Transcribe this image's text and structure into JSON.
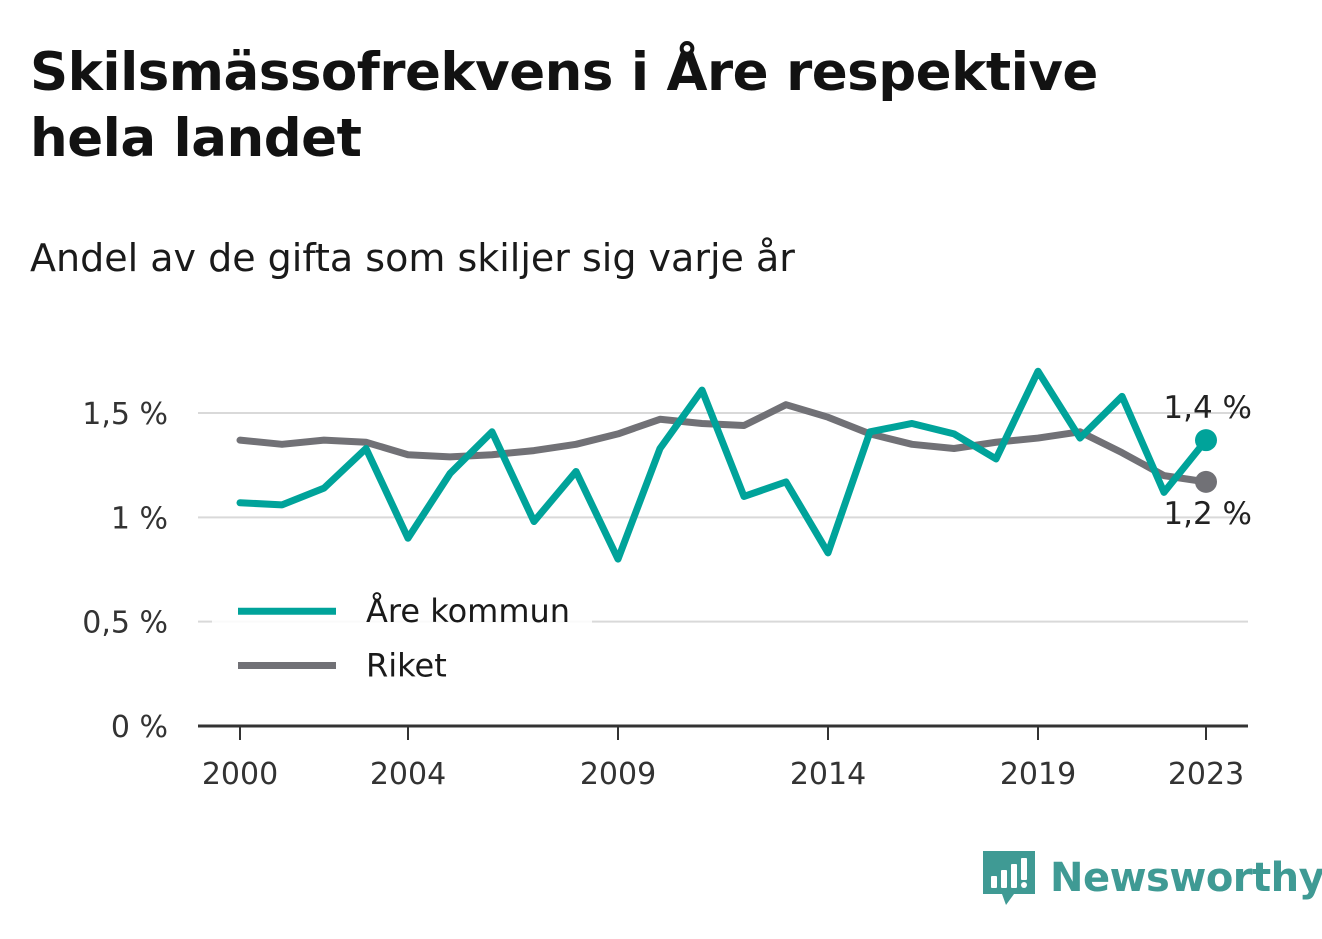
{
  "title": "Skilsmässofrekvens i Åre respektive hela landet",
  "subtitle": "Andel av de gifta som skiljer sig varje år",
  "brand": {
    "name": "Newsworthy",
    "icon": "newsworthy-logo-icon",
    "color": "#3f9a94"
  },
  "colors": {
    "are": "#00a39a",
    "riket": "#717176",
    "grid": "#d9d9d9",
    "axis": "#333333"
  },
  "chart_data": {
    "type": "line",
    "x": [
      2000,
      2001,
      2002,
      2003,
      2004,
      2005,
      2006,
      2007,
      2008,
      2009,
      2010,
      2011,
      2012,
      2013,
      2014,
      2015,
      2016,
      2017,
      2018,
      2019,
      2020,
      2021,
      2022,
      2023
    ],
    "xticks": [
      2000,
      2004,
      2009,
      2014,
      2019,
      2023
    ],
    "xlim": [
      1999,
      2024
    ],
    "yticks": [
      0,
      0.5,
      1,
      1.5
    ],
    "ytick_labels": [
      "0 %",
      "0,5 %",
      "1 %",
      "1,5 %"
    ],
    "ylim": [
      0,
      1.85
    ],
    "grid": true,
    "legend_position": "bottom-left",
    "series": [
      {
        "name": "Åre kommun",
        "color": "#00a39a",
        "values": [
          1.07,
          1.06,
          1.14,
          1.33,
          0.9,
          1.21,
          1.41,
          0.98,
          1.22,
          0.8,
          1.33,
          1.61,
          1.1,
          1.17,
          0.83,
          1.41,
          1.45,
          1.4,
          1.28,
          1.7,
          1.38,
          1.58,
          1.12,
          1.37
        ],
        "end_label": "1,4 %"
      },
      {
        "name": "Riket",
        "color": "#717176",
        "values": [
          1.37,
          1.35,
          1.37,
          1.36,
          1.3,
          1.29,
          1.3,
          1.32,
          1.35,
          1.4,
          1.47,
          1.45,
          1.44,
          1.54,
          1.48,
          1.4,
          1.35,
          1.33,
          1.36,
          1.38,
          1.41,
          1.31,
          1.2,
          1.17
        ],
        "end_label": "1,2 %"
      }
    ]
  }
}
